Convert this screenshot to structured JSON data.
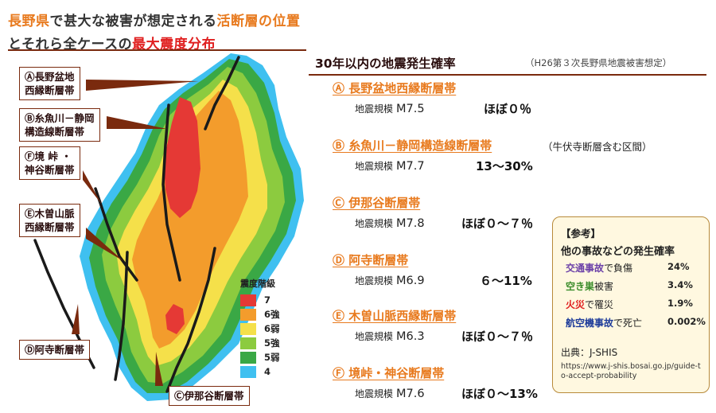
{
  "title": {
    "line1_a": "長野県",
    "line1_b": "で甚大な被害が想定される",
    "line1_c": "活断層の位置",
    "line2_a": "とそれら全ケースの",
    "line2_b": "最大震度分布"
  },
  "map_labels": {
    "a_l1": "Ⓐ長野盆地",
    "a_l2": "西縁断層帯",
    "b_l1": "Ⓑ糸魚川－静岡",
    "b_l2": "構造線断層帯",
    "f_l1": "Ⓕ境 峠 ・",
    "f_l2": "神谷断層帯",
    "e_l1": "Ⓔ木曽山脈",
    "e_l2": "西縁断層帯",
    "d_l1": "Ⓓ阿寺断層帯",
    "c_l1": "Ⓒ伊那谷断層帯"
  },
  "legend": {
    "title": "震度階級",
    "items": [
      {
        "label": "7",
        "color": "#e53935"
      },
      {
        "label": "6強",
        "color": "#f39c2c"
      },
      {
        "label": "6弱",
        "color": "#f5e04a"
      },
      {
        "label": "5強",
        "color": "#8ccb3f"
      },
      {
        "label": "5弱",
        "color": "#3aa845"
      },
      {
        "label": "4",
        "color": "#3fc0f0"
      }
    ]
  },
  "probability": {
    "header": "30年以内の地震発生確率",
    "note": "（H26第３次長野県地震被害想定）",
    "scale_label": "地震規模",
    "faults": [
      {
        "name": "Ⓐ 長野盆地西縁断層帯",
        "magnitude": "M7.5",
        "prob": "ほぼ０％",
        "extra": ""
      },
      {
        "name": "Ⓑ 糸魚川－静岡構造線断層帯",
        "magnitude": "M7.7",
        "prob": "13～30%",
        "extra": "（牛伏寺断層含む区間）"
      },
      {
        "name": "Ⓒ 伊那谷断層帯",
        "magnitude": "M7.8",
        "prob": "ほぼ０～７％",
        "extra": ""
      },
      {
        "name": "Ⓓ 阿寺断層帯",
        "magnitude": "M6.9",
        "prob": "６～11%",
        "extra": ""
      },
      {
        "name": "Ⓔ 木曽山脈西縁断層帯",
        "magnitude": "M6.3",
        "prob": "ほぼ０～７％",
        "extra": ""
      },
      {
        "name": "Ⓕ 境峠・神谷断層帯",
        "magnitude": "M7.6",
        "prob": "ほぼ０～13%",
        "extra": ""
      }
    ]
  },
  "reference": {
    "title": "【参考】",
    "subtitle": "他の事故などの発生確率",
    "rows": [
      {
        "k1": "交通事故",
        "k2": "で負傷",
        "v": "24%",
        "color": "#6a3fa8"
      },
      {
        "k1": "空き巣",
        "k2": "被害",
        "v": "3.4%",
        "color": "#3a8c2a"
      },
      {
        "k1": "火災",
        "k2": "で罹災",
        "v": "1.9%",
        "color": "#e02020"
      },
      {
        "k1": "航空機事故",
        "k2": "で死亡",
        "v": "0.002%",
        "color": "#1e3c9a"
      }
    ],
    "source": "出典：J-SHIS",
    "url": "https://www.j-shis.bosai.go.jp/guide-to-accept-probability"
  }
}
